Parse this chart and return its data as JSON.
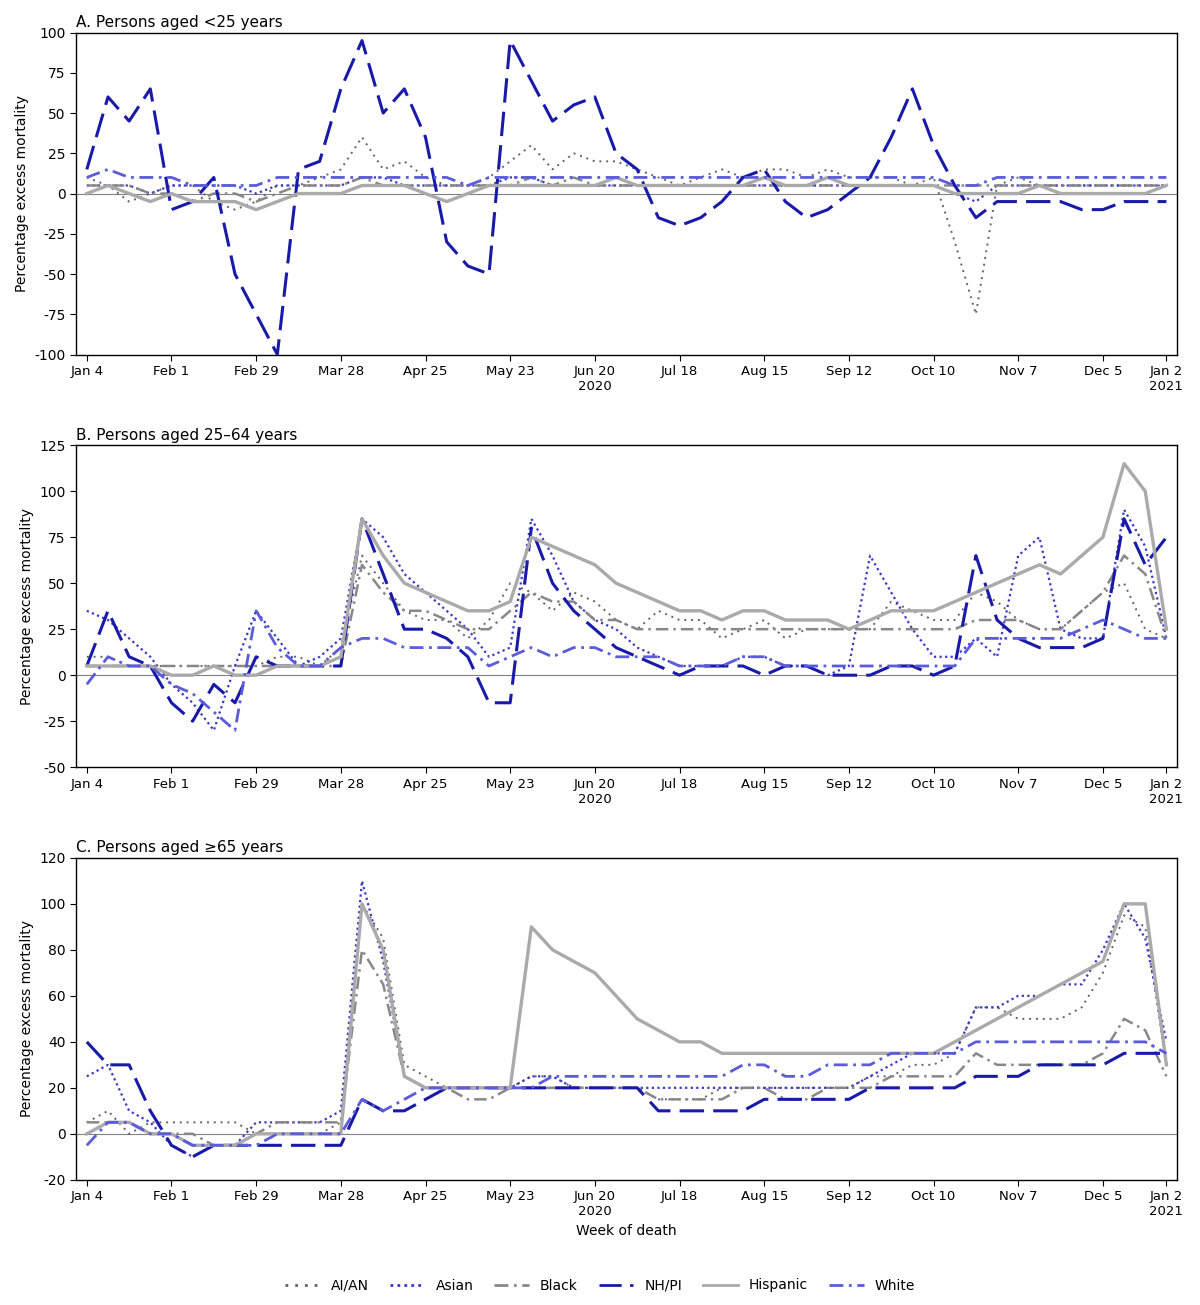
{
  "panels": [
    {
      "title": "A. Persons aged <25 years",
      "ylim": [
        -100,
        100
      ],
      "yticks": [
        -100,
        -75,
        -50,
        -25,
        0,
        25,
        50,
        75,
        100
      ],
      "ylabel": "Percentage excess mortality"
    },
    {
      "title": "B. Persons aged 25–64 years",
      "ylim": [
        -50,
        125
      ],
      "yticks": [
        -50,
        -25,
        0,
        25,
        50,
        75,
        100,
        125
      ],
      "ylabel": "Percentage excess mortality"
    },
    {
      "title": "C. Persons aged ≥65 years",
      "ylim": [
        -20,
        120
      ],
      "yticks": [
        -20,
        0,
        20,
        40,
        60,
        80,
        100,
        120
      ],
      "ylabel": "Percentage excess mortality"
    }
  ],
  "xtick_labels": [
    "Jan 4",
    "Feb 1",
    "Feb 29",
    "Mar 28",
    "Apr 25",
    "May 23",
    "Jun 20",
    "Jul 18",
    "Aug 15",
    "Sep 12",
    "Oct 10",
    "Nov 7",
    "Dec 5",
    "Jan 2"
  ],
  "xtick_label_below": [
    "",
    "",
    "",
    "",
    "",
    "",
    "2020",
    "",
    "",
    "",
    "",
    "",
    "",
    "2021"
  ],
  "xlabel": "Week of death",
  "series_names": [
    "AI/AN",
    "Asian",
    "Black",
    "NH/PI",
    "Hispanic",
    "White"
  ],
  "colors": {
    "AI/AN": "#636363",
    "Asian": "#3939c8",
    "Black": "#888888",
    "NH/PI": "#1a1aaa",
    "Hispanic": "#aaaaaa",
    "White": "#5b5bdc"
  },
  "data": {
    "A": {
      "AI/AN": [
        10,
        5,
        -5,
        0,
        5,
        5,
        -5,
        -10,
        -5,
        5,
        5,
        10,
        15,
        35,
        15,
        20,
        10,
        5,
        5,
        10,
        20,
        30,
        15,
        25,
        20,
        20,
        15,
        10,
        5,
        10,
        15,
        10,
        15,
        15,
        10,
        15,
        10,
        10,
        10,
        5,
        10,
        -30,
        -75,
        5,
        10,
        5,
        5,
        5,
        5,
        5,
        5,
        5
      ],
      "Asian": [
        5,
        5,
        5,
        0,
        5,
        5,
        5,
        5,
        0,
        5,
        5,
        5,
        5,
        10,
        10,
        5,
        5,
        5,
        5,
        5,
        10,
        10,
        5,
        5,
        5,
        5,
        5,
        5,
        5,
        5,
        5,
        5,
        5,
        5,
        5,
        5,
        5,
        5,
        5,
        5,
        5,
        0,
        -5,
        5,
        5,
        5,
        5,
        5,
        5,
        5,
        5,
        5
      ],
      "Black": [
        5,
        5,
        5,
        0,
        0,
        -5,
        0,
        0,
        -5,
        0,
        5,
        5,
        5,
        10,
        5,
        5,
        5,
        5,
        5,
        5,
        5,
        10,
        5,
        10,
        5,
        5,
        5,
        5,
        5,
        5,
        5,
        5,
        5,
        5,
        5,
        5,
        5,
        5,
        5,
        5,
        5,
        5,
        5,
        5,
        5,
        5,
        5,
        5,
        5,
        5,
        5,
        5
      ],
      "NH/PI": [
        15,
        60,
        45,
        65,
        -10,
        -5,
        10,
        -50,
        -75,
        -100,
        15,
        20,
        65,
        95,
        50,
        65,
        35,
        -30,
        -45,
        -50,
        95,
        70,
        45,
        55,
        60,
        25,
        15,
        -15,
        -20,
        -15,
        -5,
        10,
        15,
        -5,
        -15,
        -10,
        0,
        10,
        35,
        65,
        30,
        5,
        -15,
        -5,
        -5,
        -5,
        -5,
        -10,
        -10,
        -5,
        -5,
        -5
      ],
      "Hispanic": [
        0,
        5,
        0,
        -5,
        0,
        -5,
        -5,
        -5,
        -10,
        -5,
        0,
        0,
        0,
        5,
        5,
        5,
        0,
        -5,
        0,
        5,
        5,
        5,
        5,
        5,
        5,
        10,
        5,
        5,
        5,
        5,
        5,
        5,
        10,
        5,
        5,
        10,
        5,
        5,
        5,
        5,
        5,
        0,
        0,
        0,
        0,
        5,
        0,
        0,
        0,
        0,
        0,
        5
      ],
      "White": [
        10,
        15,
        10,
        10,
        10,
        5,
        5,
        5,
        5,
        10,
        10,
        10,
        10,
        10,
        10,
        10,
        10,
        10,
        5,
        10,
        10,
        10,
        10,
        10,
        10,
        10,
        10,
        10,
        10,
        10,
        10,
        10,
        10,
        10,
        10,
        10,
        10,
        10,
        10,
        10,
        10,
        5,
        5,
        10,
        10,
        10,
        10,
        10,
        10,
        10,
        10,
        10
      ]
    },
    "B": {
      "AI/AN": [
        10,
        10,
        5,
        5,
        5,
        5,
        5,
        5,
        5,
        10,
        10,
        5,
        15,
        65,
        50,
        35,
        30,
        30,
        20,
        30,
        50,
        45,
        35,
        45,
        40,
        30,
        25,
        35,
        30,
        30,
        20,
        25,
        30,
        20,
        25,
        25,
        25,
        25,
        40,
        35,
        30,
        30,
        45,
        40,
        30,
        25,
        25,
        35,
        45,
        50,
        25,
        20
      ],
      "Asian": [
        35,
        30,
        20,
        10,
        -5,
        -15,
        -30,
        5,
        35,
        20,
        5,
        10,
        20,
        85,
        75,
        55,
        45,
        35,
        25,
        10,
        15,
        85,
        65,
        40,
        30,
        25,
        15,
        10,
        5,
        5,
        5,
        10,
        10,
        5,
        5,
        0,
        5,
        65,
        45,
        25,
        10,
        10,
        20,
        10,
        65,
        75,
        25,
        20,
        20,
        90,
        70,
        20
      ],
      "Black": [
        5,
        5,
        5,
        5,
        5,
        5,
        5,
        5,
        5,
        5,
        5,
        5,
        5,
        60,
        45,
        35,
        35,
        30,
        25,
        25,
        35,
        45,
        40,
        40,
        30,
        30,
        25,
        25,
        25,
        25,
        25,
        25,
        25,
        25,
        25,
        25,
        25,
        25,
        25,
        25,
        25,
        25,
        30,
        30,
        30,
        25,
        25,
        35,
        45,
        65,
        55,
        20
      ],
      "NH/PI": [
        5,
        35,
        10,
        5,
        -15,
        -25,
        -5,
        -15,
        10,
        5,
        5,
        5,
        5,
        85,
        55,
        25,
        25,
        20,
        10,
        -15,
        -15,
        80,
        50,
        35,
        25,
        15,
        10,
        5,
        0,
        5,
        5,
        5,
        0,
        5,
        5,
        0,
        0,
        0,
        5,
        5,
        0,
        5,
        65,
        30,
        20,
        15,
        15,
        15,
        20,
        85,
        60,
        75
      ],
      "Hispanic": [
        5,
        5,
        5,
        5,
        0,
        0,
        5,
        0,
        0,
        5,
        5,
        5,
        10,
        85,
        65,
        50,
        45,
        40,
        35,
        35,
        40,
        75,
        70,
        65,
        60,
        50,
        45,
        40,
        35,
        35,
        30,
        35,
        35,
        30,
        30,
        30,
        25,
        30,
        35,
        35,
        35,
        40,
        45,
        50,
        55,
        60,
        55,
        65,
        75,
        115,
        100,
        25
      ],
      "White": [
        -5,
        10,
        5,
        5,
        -5,
        -10,
        -20,
        -30,
        35,
        15,
        5,
        5,
        15,
        20,
        20,
        15,
        15,
        15,
        15,
        5,
        10,
        15,
        10,
        15,
        15,
        10,
        10,
        10,
        5,
        5,
        5,
        10,
        10,
        5,
        5,
        5,
        5,
        5,
        5,
        5,
        5,
        5,
        20,
        20,
        20,
        20,
        20,
        25,
        30,
        25,
        20,
        20
      ]
    },
    "C": {
      "AI/AN": [
        5,
        10,
        0,
        5,
        5,
        5,
        5,
        5,
        0,
        0,
        0,
        0,
        5,
        100,
        85,
        30,
        25,
        20,
        20,
        20,
        20,
        25,
        25,
        20,
        20,
        20,
        20,
        15,
        15,
        15,
        20,
        20,
        20,
        20,
        20,
        20,
        20,
        25,
        25,
        30,
        30,
        35,
        55,
        55,
        50,
        50,
        50,
        55,
        70,
        95,
        90,
        30
      ],
      "Asian": [
        25,
        30,
        10,
        5,
        -5,
        -10,
        -5,
        -5,
        5,
        5,
        5,
        5,
        10,
        110,
        75,
        25,
        20,
        20,
        20,
        20,
        20,
        25,
        25,
        20,
        20,
        20,
        20,
        20,
        20,
        20,
        20,
        20,
        20,
        20,
        20,
        20,
        20,
        25,
        30,
        35,
        35,
        35,
        55,
        55,
        60,
        60,
        65,
        65,
        80,
        100,
        85,
        40
      ],
      "Black": [
        5,
        5,
        5,
        0,
        0,
        0,
        -5,
        -5,
        0,
        5,
        5,
        5,
        5,
        80,
        65,
        25,
        20,
        20,
        15,
        15,
        20,
        20,
        20,
        20,
        20,
        20,
        20,
        15,
        15,
        15,
        15,
        20,
        20,
        15,
        15,
        20,
        20,
        20,
        25,
        25,
        25,
        25,
        35,
        30,
        30,
        30,
        30,
        30,
        35,
        50,
        45,
        25
      ],
      "NH/PI": [
        40,
        30,
        30,
        10,
        -5,
        -10,
        -5,
        -5,
        -5,
        -5,
        -5,
        -5,
        -5,
        15,
        10,
        10,
        15,
        20,
        20,
        20,
        20,
        20,
        20,
        20,
        20,
        20,
        20,
        10,
        10,
        10,
        10,
        10,
        15,
        15,
        15,
        15,
        15,
        20,
        20,
        20,
        20,
        20,
        25,
        25,
        25,
        30,
        30,
        30,
        30,
        35,
        35,
        35
      ],
      "Hispanic": [
        0,
        5,
        5,
        0,
        0,
        -5,
        -5,
        -5,
        0,
        0,
        0,
        0,
        0,
        100,
        80,
        25,
        20,
        20,
        20,
        20,
        20,
        90,
        80,
        75,
        70,
        60,
        50,
        45,
        40,
        40,
        35,
        35,
        35,
        35,
        35,
        35,
        35,
        35,
        35,
        35,
        35,
        40,
        45,
        50,
        55,
        60,
        65,
        70,
        75,
        100,
        100,
        30
      ],
      "White": [
        -5,
        5,
        5,
        0,
        0,
        -5,
        -5,
        -5,
        -5,
        0,
        0,
        0,
        0,
        15,
        10,
        15,
        20,
        20,
        20,
        20,
        20,
        20,
        25,
        25,
        25,
        25,
        25,
        25,
        25,
        25,
        25,
        30,
        30,
        25,
        25,
        30,
        30,
        30,
        35,
        35,
        35,
        35,
        40,
        40,
        40,
        40,
        40,
        40,
        40,
        40,
        40,
        35
      ]
    }
  }
}
